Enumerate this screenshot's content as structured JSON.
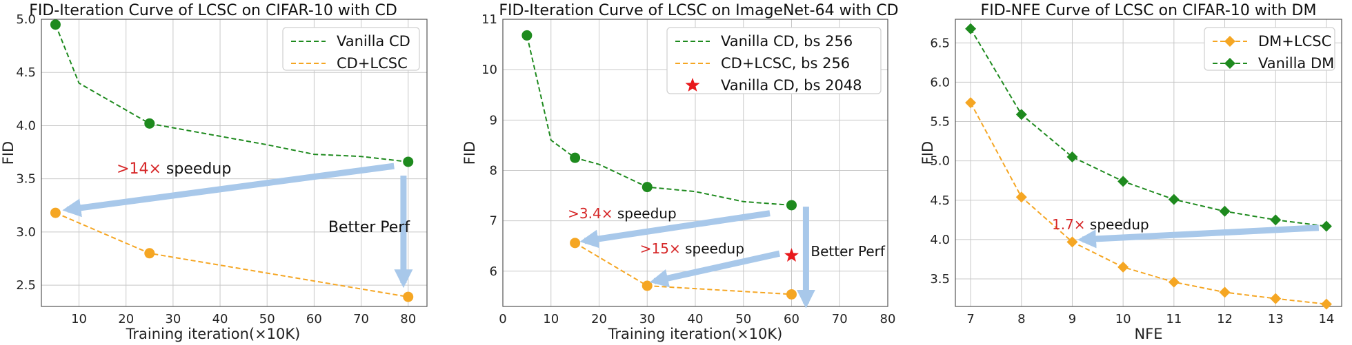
{
  "colors": {
    "green": "#1e8a1e",
    "orange": "#f5a623",
    "red": "#e8191c",
    "arrow": "#a8c8ea",
    "grid": "#c8c8c8"
  },
  "chart_data": [
    {
      "type": "line",
      "title": "FID-Iteration Curve of LCSC on CIFAR-10 with CD",
      "xlabel": "Training iteration(×10K)",
      "ylabel": "FID",
      "xlim": [
        2,
        84
      ],
      "ylim": [
        2.3,
        5.0
      ],
      "xticks": [
        10,
        20,
        30,
        40,
        50,
        60,
        70,
        80
      ],
      "yticks": [
        2.5,
        3.0,
        3.5,
        4.0,
        4.5,
        5.0
      ],
      "ytick_labels": [
        "2.5",
        "3.0",
        "3.5",
        "4.0",
        "4.5",
        "5.0"
      ],
      "legend_pos": "top-right",
      "series": [
        {
          "name": "Vanilla CD",
          "color": "green",
          "marker": "circle",
          "x": [
            5,
            10,
            25,
            50,
            60,
            70,
            80
          ],
          "y": [
            4.95,
            4.4,
            4.02,
            3.82,
            3.73,
            3.71,
            3.66
          ],
          "marker_idx": [
            0,
            2,
            6
          ]
        },
        {
          "name": "CD+LCSC",
          "color": "orange",
          "marker": "circle",
          "x": [
            5,
            25,
            80
          ],
          "y": [
            3.18,
            2.8,
            2.39
          ],
          "marker_idx": [
            0,
            1,
            2
          ]
        }
      ],
      "annotations": [
        {
          "red": ">14×",
          "text": " speedup",
          "x": 18,
          "y": 3.55,
          "size": "big"
        },
        {
          "red": "",
          "text": "Better Perf",
          "x": 63,
          "y": 3.0,
          "size": "big"
        }
      ],
      "arrows": [
        {
          "from": [
            77,
            3.62
          ],
          "to": [
            7.5,
            3.21
          ]
        },
        {
          "from": [
            79,
            3.53
          ],
          "to": [
            79,
            2.52
          ]
        }
      ]
    },
    {
      "type": "line",
      "title": "FID-Iteration Curve of LCSC on ImageNet-64 with CD",
      "xlabel": "Training iteration(×10K)",
      "ylabel": "FID",
      "xlim": [
        0,
        80
      ],
      "ylim": [
        5.3,
        11.0
      ],
      "xticks": [
        0,
        10,
        20,
        30,
        40,
        50,
        60,
        70,
        80
      ],
      "yticks": [
        6,
        7,
        8,
        9,
        10,
        11
      ],
      "ytick_labels": [
        "6",
        "7",
        "8",
        "9",
        "10",
        "11"
      ],
      "legend_pos": "top-right",
      "series": [
        {
          "name": "Vanilla CD, bs 256",
          "color": "green",
          "marker": "circle",
          "x": [
            5,
            10,
            15,
            20,
            30,
            40,
            50,
            60
          ],
          "y": [
            10.68,
            8.6,
            8.25,
            8.12,
            7.67,
            7.58,
            7.38,
            7.31
          ],
          "marker_idx": [
            0,
            2,
            4,
            7
          ]
        },
        {
          "name": "CD+LCSC, bs 256",
          "color": "orange",
          "marker": "circle",
          "x": [
            15,
            30,
            60
          ],
          "y": [
            6.56,
            5.71,
            5.54
          ],
          "marker_idx": [
            0,
            1,
            2
          ]
        },
        {
          "name": "Vanilla CD, bs 2048",
          "color": "red",
          "marker": "star",
          "nolines": true,
          "x": [
            60
          ],
          "y": [
            6.31
          ],
          "marker_idx": [
            0
          ]
        }
      ],
      "annotations": [
        {
          "red": ">3.4×",
          "text": " speedup",
          "x": 13.5,
          "y": 7.05,
          "size": "small"
        },
        {
          "red": ">15×",
          "text": " speedup",
          "x": 28.5,
          "y": 6.35,
          "size": "small"
        },
        {
          "red": "",
          "text": "Better Perf",
          "x": 64,
          "y": 6.3,
          "size": "small"
        }
      ],
      "arrows": [
        {
          "from": [
            55.5,
            7.15
          ],
          "to": [
            17,
            6.6
          ]
        },
        {
          "from": [
            57.5,
            6.35
          ],
          "to": [
            31.5,
            5.8
          ]
        },
        {
          "from": [
            63,
            7.28
          ],
          "to": [
            63,
            5.36
          ]
        }
      ]
    },
    {
      "type": "line",
      "title": "FID-NFE Curve of LCSC on CIFAR-10 with DM",
      "xlabel": "NFE",
      "ylabel": "FID",
      "xlim": [
        6.7,
        14.3
      ],
      "ylim": [
        3.15,
        6.8
      ],
      "xticks": [
        7,
        8,
        9,
        10,
        11,
        12,
        13,
        14
      ],
      "yticks": [
        3.5,
        4.0,
        4.5,
        5.0,
        5.5,
        6.0,
        6.5
      ],
      "ytick_labels": [
        "3.5",
        "4.0",
        "4.5",
        "5.0",
        "5.5",
        "6.0",
        "6.5"
      ],
      "legend_pos": "top-right",
      "series": [
        {
          "name": "DM+LCSC",
          "color": "orange",
          "marker": "diamond",
          "x": [
            7,
            8,
            9,
            10,
            11,
            12,
            13,
            14
          ],
          "y": [
            5.74,
            4.54,
            3.97,
            3.65,
            3.46,
            3.33,
            3.25,
            3.18
          ],
          "marker_idx": [
            0,
            1,
            2,
            3,
            4,
            5,
            6,
            7
          ]
        },
        {
          "name": "Vanilla DM",
          "color": "green",
          "marker": "diamond",
          "x": [
            7,
            8,
            9,
            10,
            11,
            12,
            13,
            14
          ],
          "y": [
            6.68,
            5.59,
            5.05,
            4.74,
            4.51,
            4.36,
            4.25,
            4.17
          ],
          "marker_idx": [
            0,
            1,
            2,
            3,
            4,
            5,
            6,
            7
          ]
        }
      ],
      "annotations": [
        {
          "red": "1.7×",
          "text": " speedup",
          "x": 8.6,
          "y": 4.13,
          "size": "small"
        }
      ],
      "arrows": [
        {
          "from": [
            13.85,
            4.15
          ],
          "to": [
            9.2,
            4.0
          ]
        }
      ]
    }
  ]
}
